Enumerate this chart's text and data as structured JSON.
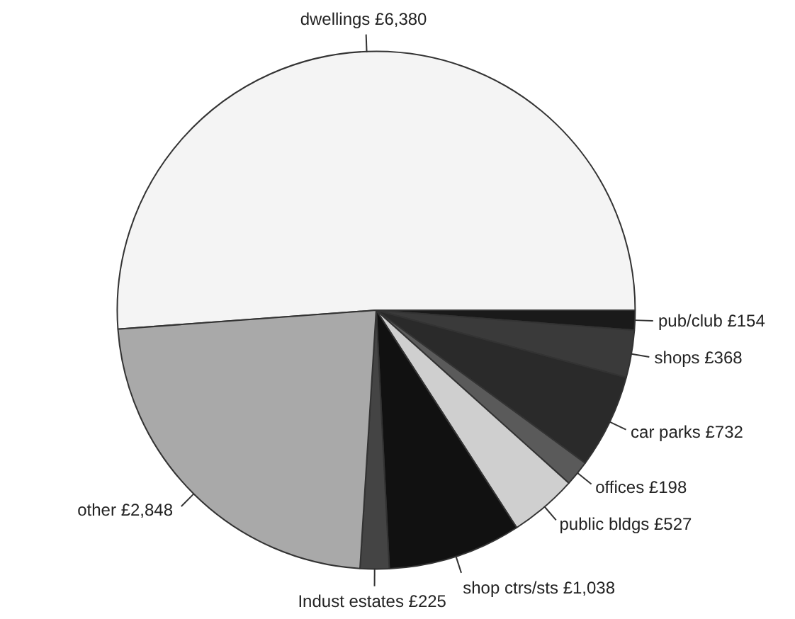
{
  "chart_data": {
    "type": "pie",
    "categories": [
      "dwellings",
      "pub/club",
      "shops",
      "car parks",
      "offices",
      "public bldgs",
      "shop ctrs/sts",
      "Indust estates",
      "other"
    ],
    "values": [
      6380,
      154,
      368,
      732,
      198,
      527,
      1038,
      225,
      2848
    ],
    "value_labels": [
      "£6,380",
      "£154",
      "£368",
      "£732",
      "£198",
      "£527",
      "£1,038",
      "£225",
      "£2,848"
    ],
    "colors": [
      "#f4f4f4",
      "#1a1a1a",
      "#3a3a3a",
      "#2a2a2a",
      "#5a5a5a",
      "#cfcfcf",
      "#111111",
      "#444444",
      "#a9a9a9"
    ]
  }
}
